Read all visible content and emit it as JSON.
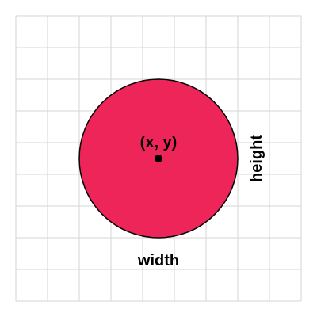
{
  "diagram": {
    "center_label": "(x, y)",
    "width_label": "width",
    "height_label": "height",
    "grid_columns": 9,
    "grid_rows": 9
  },
  "colors": {
    "circle_fill": "#EE2559",
    "circle_stroke": "#000000",
    "grid_line": "#D4D4D4",
    "background": "#FFFFFF",
    "text": "#000000"
  }
}
